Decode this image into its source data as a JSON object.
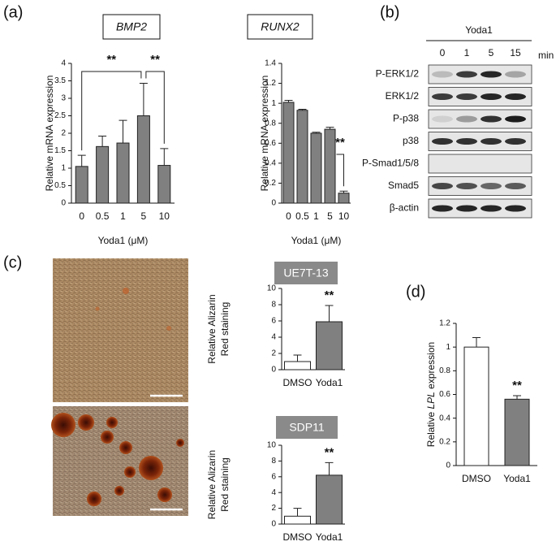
{
  "panel_labels": [
    "(a)",
    "(b)",
    "(c)",
    "(d)"
  ],
  "blot": {
    "treatment": "Yoda1",
    "lanes": [
      "0",
      "1",
      "5",
      "15"
    ],
    "unit": "min",
    "rows": [
      "P-ERK1/2",
      "ERK1/2",
      "P-p38",
      "p38",
      "P-Smad1/5/8",
      "Smad5",
      "β-actin"
    ]
  },
  "chart_data": [
    {
      "type": "bar",
      "title": "BMP2",
      "categories": [
        "0",
        "0.5",
        "1",
        "5",
        "10"
      ],
      "values": [
        1.05,
        1.62,
        1.72,
        2.5,
        1.08
      ],
      "errors": [
        0.32,
        0.3,
        0.65,
        0.93,
        0.48
      ],
      "colors": [
        "#808080",
        "#808080",
        "#808080",
        "#808080",
        "#808080"
      ],
      "ylim": [
        0,
        4
      ],
      "yticks": [
        0,
        0.5,
        1,
        1.5,
        2,
        2.5,
        3,
        3.5,
        4
      ],
      "ylabel": [
        "Relative mRNA expression"
      ],
      "xlabel": "Yoda1 (μM)",
      "annotations": [
        "**",
        "**"
      ]
    },
    {
      "type": "bar",
      "title": "RUNX2",
      "categories": [
        "0",
        "0.5",
        "1",
        "5",
        "10"
      ],
      "values": [
        1.01,
        0.93,
        0.7,
        0.74,
        0.1
      ],
      "errors": [
        0.02,
        0.01,
        0.01,
        0.02,
        0.02
      ],
      "colors": [
        "#808080",
        "#808080",
        "#808080",
        "#808080",
        "#808080"
      ],
      "ylim": [
        0,
        1.4
      ],
      "yticks": [
        0,
        0.2,
        0.4,
        0.6,
        0.8,
        1,
        1.2,
        1.4
      ],
      "ylabel": [
        "Relative mRNA expression"
      ],
      "xlabel": "Yoda1 (μM)",
      "annotations": [
        "**"
      ]
    },
    {
      "type": "bar",
      "title": "UE7T-13",
      "categories": [
        "DMSO",
        "Yoda1"
      ],
      "values": [
        1.0,
        5.9
      ],
      "errors": [
        0.8,
        2.0
      ],
      "colors": [
        "#ffffff",
        "#808080"
      ],
      "ylim": [
        0,
        10
      ],
      "yticks": [
        0,
        2,
        4,
        6,
        8,
        10
      ],
      "ylabel": [
        "Relative Alizarin",
        "Red staining"
      ],
      "annotations": [
        "**"
      ]
    },
    {
      "type": "bar",
      "title": "SDP11",
      "categories": [
        "DMSO",
        "Yoda1"
      ],
      "values": [
        1.0,
        6.2
      ],
      "errors": [
        1.0,
        1.6
      ],
      "colors": [
        "#ffffff",
        "#808080"
      ],
      "ylim": [
        0,
        10
      ],
      "yticks": [
        0,
        2,
        4,
        6,
        8,
        10
      ],
      "ylabel": [
        "Relative Alizarin",
        "Red staining"
      ],
      "annotations": [
        "**"
      ]
    },
    {
      "type": "bar",
      "categories": [
        "DMSO",
        "Yoda1"
      ],
      "values": [
        1.0,
        0.56
      ],
      "errors": [
        0.08,
        0.03
      ],
      "colors": [
        "#ffffff",
        "#808080"
      ],
      "ylim": [
        0,
        1.2
      ],
      "yticks": [
        0,
        0.2,
        0.4,
        0.6,
        0.8,
        1,
        1.2
      ],
      "ylabel": [
        "Relative ",
        "LPL",
        " expression"
      ],
      "annotations": [
        "**"
      ]
    }
  ]
}
